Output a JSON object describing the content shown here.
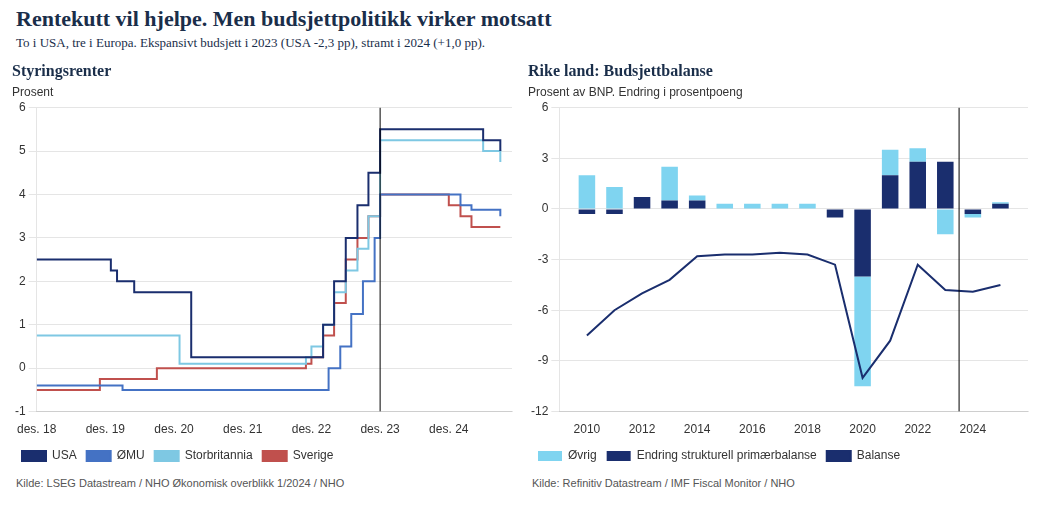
{
  "title": "Rentekutt vil hjelpe. Men budsjettpolitikk virker motsatt",
  "subtitle": "To i USA, tre i Europa. Ekspansivt budsjett i 2023 (USA -2,3 pp), stramt i 2024 (+1,0 pp).",
  "chart_data": [
    {
      "type": "line",
      "line_style": "step",
      "title": "Styringsrenter",
      "ylabel": "Prosent",
      "source": "Kilde: LSEG Datastream / NHO Økonomisk overblikk 1/2024 / NHO",
      "xlim": [
        2018.0,
        2024.92
      ],
      "xticks": [
        {
          "value": 2018.0,
          "label": "des. 18"
        },
        {
          "value": 2019.0,
          "label": "des. 19"
        },
        {
          "value": 2020.0,
          "label": "des. 20"
        },
        {
          "value": 2021.0,
          "label": "des. 21"
        },
        {
          "value": 2022.0,
          "label": "des. 22"
        },
        {
          "value": 2023.0,
          "label": "des. 23"
        },
        {
          "value": 2024.0,
          "label": "des. 24"
        }
      ],
      "ylim": [
        -1,
        6
      ],
      "yticks": [
        -1,
        0,
        1,
        2,
        3,
        4,
        5,
        6
      ],
      "grid": "y",
      "legend": "bottom",
      "vline_x": 2023.0,
      "series": [
        {
          "name": "USA",
          "color": "#1a2e6e",
          "x": [
            2018.0,
            2018.08,
            2018.17,
            2018.25,
            2018.33,
            2018.42,
            2018.5,
            2018.58,
            2018.67,
            2018.75,
            2018.83,
            2018.92,
            2019.0,
            2019.08,
            2019.17,
            2019.25,
            2019.33,
            2019.42,
            2019.5,
            2019.58,
            2019.67,
            2019.75,
            2019.83,
            2019.92,
            2020.0,
            2020.25,
            2020.5,
            2020.75,
            2021.0,
            2021.25,
            2021.5,
            2021.75,
            2022.0,
            2022.17,
            2022.33,
            2022.5,
            2022.67,
            2022.83,
            2023.0,
            2023.25,
            2023.5,
            2023.75,
            2024.0,
            2024.25,
            2024.5,
            2024.75
          ],
          "values": [
            2.5,
            2.5,
            2.5,
            2.5,
            2.5,
            2.5,
            2.5,
            2.5,
            2.5,
            2.5,
            2.5,
            2.5,
            2.5,
            2.25,
            2.0,
            2.0,
            2.0,
            1.75,
            1.75,
            1.75,
            1.75,
            1.75,
            1.75,
            1.75,
            1.75,
            0.25,
            0.25,
            0.25,
            0.25,
            0.25,
            0.25,
            0.25,
            0.25,
            1.0,
            2.0,
            3.0,
            3.75,
            4.5,
            5.5,
            5.5,
            5.5,
            5.5,
            5.5,
            5.5,
            5.25,
            5.0
          ]
        },
        {
          "name": "ØMU",
          "color": "#4472c4",
          "x": [
            2018.0,
            2018.25,
            2018.5,
            2018.75,
            2019.0,
            2019.25,
            2019.5,
            2019.75,
            2020.0,
            2020.25,
            2020.5,
            2020.75,
            2021.0,
            2021.25,
            2021.5,
            2021.75,
            2022.0,
            2022.25,
            2022.42,
            2022.58,
            2022.75,
            2022.92,
            2023.0,
            2023.25,
            2023.5,
            2023.75,
            2024.0,
            2024.17,
            2024.33,
            2024.5,
            2024.75
          ],
          "values": [
            -0.4,
            -0.4,
            -0.4,
            -0.4,
            -0.4,
            -0.5,
            -0.5,
            -0.5,
            -0.5,
            -0.5,
            -0.5,
            -0.5,
            -0.5,
            -0.5,
            -0.5,
            -0.5,
            -0.5,
            0.0,
            0.5,
            1.25,
            2.0,
            3.0,
            4.0,
            4.0,
            4.0,
            4.0,
            4.0,
            3.75,
            3.65,
            3.65,
            3.5
          ]
        },
        {
          "name": "Storbritannia",
          "color": "#7ec8e3",
          "x": [
            2018.0,
            2018.25,
            2018.5,
            2018.75,
            2019.0,
            2019.25,
            2019.5,
            2019.75,
            2020.0,
            2020.08,
            2020.25,
            2020.5,
            2020.75,
            2021.0,
            2021.25,
            2021.5,
            2021.75,
            2021.92,
            2022.0,
            2022.17,
            2022.33,
            2022.5,
            2022.67,
            2022.83,
            2023.0,
            2023.25,
            2023.5,
            2023.75,
            2024.0,
            2024.17,
            2024.5,
            2024.75
          ],
          "values": [
            0.75,
            0.75,
            0.75,
            0.75,
            0.75,
            0.75,
            0.75,
            0.75,
            0.75,
            0.1,
            0.1,
            0.1,
            0.1,
            0.1,
            0.1,
            0.1,
            0.1,
            0.25,
            0.5,
            1.0,
            1.75,
            2.25,
            2.75,
            3.5,
            5.25,
            5.25,
            5.25,
            5.25,
            5.25,
            5.25,
            5.0,
            4.75
          ]
        },
        {
          "name": "Sverige",
          "color": "#c0504d",
          "x": [
            2018.0,
            2018.25,
            2018.5,
            2018.75,
            2018.92,
            2019.0,
            2019.08,
            2019.25,
            2019.5,
            2019.75,
            2020.0,
            2020.25,
            2020.5,
            2020.75,
            2021.0,
            2021.25,
            2021.5,
            2021.75,
            2021.92,
            2022.0,
            2022.17,
            2022.33,
            2022.5,
            2022.67,
            2022.83,
            2023.0,
            2023.25,
            2023.5,
            2023.75,
            2024.0,
            2024.17,
            2024.33,
            2024.5,
            2024.75
          ],
          "values": [
            -0.5,
            -0.5,
            -0.5,
            -0.5,
            -0.25,
            -0.25,
            -0.25,
            -0.25,
            -0.25,
            0.0,
            0.0,
            0.0,
            0.0,
            0.0,
            0.0,
            0.0,
            0.0,
            0.0,
            0.1,
            0.25,
            0.75,
            1.5,
            2.5,
            3.0,
            3.5,
            4.0,
            4.0,
            4.0,
            4.0,
            3.75,
            3.5,
            3.25,
            3.25,
            3.25
          ]
        }
      ]
    },
    {
      "type": "bar",
      "stacked": true,
      "title": "Rike land: Budsjettbalanse",
      "subtitle": "Prosent av BNP. Endring i prosentpoeng",
      "source": "Kilde: Refinitiv Datastream / IMF Fiscal Monitor / NHO",
      "x": [
        2010,
        2011,
        2012,
        2013,
        2014,
        2015,
        2016,
        2017,
        2018,
        2019,
        2020,
        2021,
        2022,
        2023,
        2024,
        2025
      ],
      "xlim": [
        2009.0,
        2026.0
      ],
      "xticks": [
        2010,
        2012,
        2014,
        2016,
        2018,
        2020,
        2022,
        2024
      ],
      "ylim": [
        -12,
        6
      ],
      "yticks": [
        -12,
        -9,
        -6,
        -3,
        0,
        3,
        6
      ],
      "grid": "y",
      "legend": "bottom",
      "vline_x": 2023.5,
      "series": [
        {
          "name": "Øvrig",
          "type": "bar",
          "color": "#7fd4f0",
          "values": [
            2.0,
            1.3,
            0.0,
            2.0,
            0.3,
            0.3,
            0.3,
            0.3,
            0.3,
            0.0,
            -6.5,
            1.5,
            0.8,
            -1.5,
            -0.2,
            0.1
          ]
        },
        {
          "name": "Endring strukturell primærbalanse",
          "type": "bar",
          "color": "#1a2e6e",
          "values": [
            -0.3,
            -0.3,
            0.7,
            0.5,
            0.5,
            0.0,
            0.0,
            0.0,
            0.0,
            -0.5,
            -4.0,
            2.0,
            2.8,
            2.8,
            -0.3,
            0.3
          ]
        },
        {
          "name": "Balanse",
          "type": "line",
          "color": "#1a2e6e",
          "values": [
            -7.5,
            -6.0,
            -5.0,
            -4.2,
            -2.8,
            -2.7,
            -2.7,
            -2.6,
            -2.7,
            -3.3,
            -10.0,
            -7.8,
            -3.3,
            -4.8,
            -4.9,
            -4.5
          ]
        }
      ]
    }
  ]
}
